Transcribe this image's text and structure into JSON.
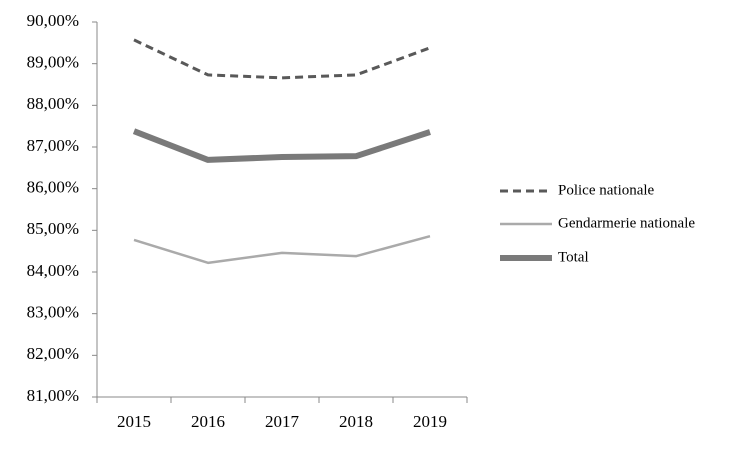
{
  "chart_data": {
    "type": "line",
    "categories": [
      "2015",
      "2016",
      "2017",
      "2018",
      "2019"
    ],
    "series": [
      {
        "name": "Police nationale",
        "color": "#595959",
        "line_style": "dashed",
        "values": [
          89.57,
          88.73,
          88.66,
          88.73,
          89.38
        ]
      },
      {
        "name": "Gendarmerie nationale",
        "color": "#aaaaaa",
        "line_style": "solid",
        "values": [
          84.77,
          84.22,
          84.46,
          84.38,
          84.86
        ]
      },
      {
        "name": "Total",
        "color": "#7a7a7a",
        "line_style": "solid",
        "values": [
          87.38,
          86.69,
          86.76,
          86.78,
          87.36
        ]
      }
    ],
    "ylim": [
      81,
      90
    ],
    "yticks": [
      {
        "value": 81,
        "label": "81,00%"
      },
      {
        "value": 82,
        "label": "82,00%"
      },
      {
        "value": 83,
        "label": "83,00%"
      },
      {
        "value": 84,
        "label": "84,00%"
      },
      {
        "value": 85,
        "label": "85,00%"
      },
      {
        "value": 86,
        "label": "86,00%"
      },
      {
        "value": 87,
        "label": "87,00%"
      },
      {
        "value": 88,
        "label": "88,00%"
      },
      {
        "value": 89,
        "label": "89,00%"
      },
      {
        "value": 90,
        "label": "90,00%"
      }
    ],
    "grid": false,
    "legend": "right"
  }
}
